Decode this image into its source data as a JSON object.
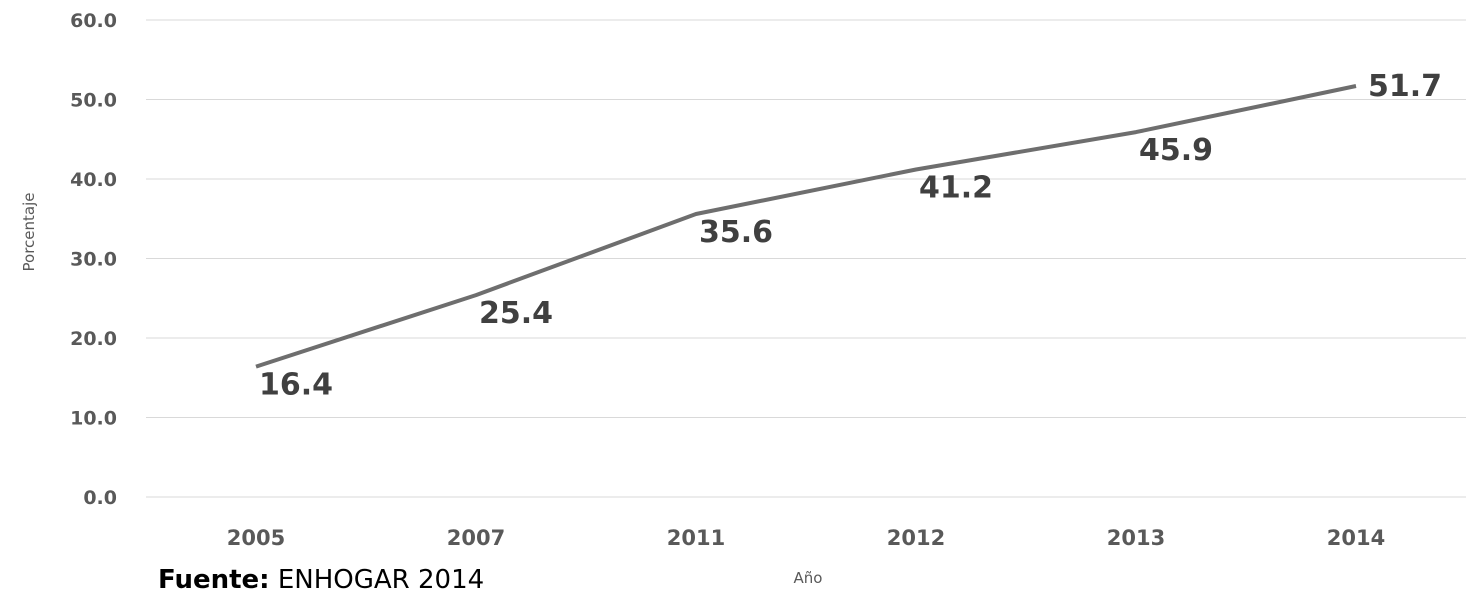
{
  "chart_data": {
    "type": "line",
    "categories": [
      "2005",
      "2007",
      "2011",
      "2012",
      "2013",
      "2014"
    ],
    "series": [
      {
        "values": [
          16.4,
          25.4,
          35.6,
          41.2,
          45.9,
          51.7
        ],
        "labels": [
          "16.4",
          "25.4",
          "35.6",
          "41.2",
          "45.9",
          "51.7"
        ]
      }
    ],
    "xlabel": "Año",
    "ylabel": "Porcentaje",
    "ylim": [
      0,
      60
    ],
    "yticks": [
      "0.0",
      "10.0",
      "20.0",
      "30.0",
      "40.0",
      "50.0",
      "60.0"
    ],
    "grid": true,
    "line_color": "#6e6e6e",
    "grid_color": "#d9d9d9"
  },
  "source": {
    "label": "Fuente:",
    "text": "ENHOGAR 2014"
  }
}
